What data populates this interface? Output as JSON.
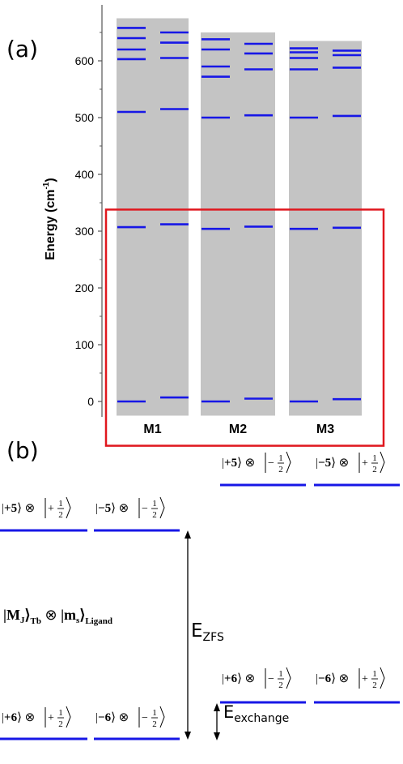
{
  "panel_labels": {
    "a": "(a)",
    "b": "(b)"
  },
  "chart_data": {
    "type": "bar",
    "title": "",
    "xlabel": "",
    "ylabel": "Energy (cm-1)",
    "ylabel_main": "Energy (cm",
    "ylabel_sup": "-1",
    "ylabel_close": ")",
    "ylim": [
      -25,
      695
    ],
    "yticks": [
      0,
      100,
      200,
      300,
      400,
      500,
      600
    ],
    "categories": [
      "M1",
      "M2",
      "M3"
    ],
    "band_top": [
      675,
      650,
      635
    ],
    "band_bottom": -25,
    "levels": [
      {
        "left": [
          0,
          307,
          510,
          603,
          620,
          640,
          658
        ],
        "right": [
          7,
          312,
          515,
          605,
          632,
          650
        ]
      },
      {
        "left": [
          0,
          304,
          500,
          572,
          590,
          620,
          638
        ],
        "right": [
          5,
          308,
          504,
          585,
          613,
          630
        ]
      },
      {
        "left": [
          0,
          304,
          500,
          585,
          605,
          615,
          622
        ],
        "right": [
          4,
          306,
          503,
          588,
          610,
          618
        ]
      }
    ],
    "highlight_box": {
      "ymin": -78,
      "ymax": 338,
      "color": "#e0171e"
    },
    "band_color": "#c4c4c4",
    "level_color": "#1717e6"
  },
  "diagram": {
    "states": [
      {
        "group": "top_right",
        "side": "left",
        "ket": "+5",
        "spin_sign": "−"
      },
      {
        "group": "top_right",
        "side": "right",
        "ket": "−5",
        "spin_sign": "+"
      },
      {
        "group": "upper_left",
        "side": "left",
        "ket": "+5",
        "spin_sign": "+"
      },
      {
        "group": "upper_left",
        "side": "right",
        "ket": "−5",
        "spin_sign": "−"
      },
      {
        "group": "mid_right",
        "side": "left",
        "ket": "+6",
        "spin_sign": "−"
      },
      {
        "group": "mid_right",
        "side": "right",
        "ket": "−6",
        "spin_sign": "+"
      },
      {
        "group": "bottom_left",
        "side": "left",
        "ket": "+6",
        "spin_sign": "+"
      },
      {
        "group": "bottom_left",
        "side": "right",
        "ket": "−6",
        "spin_sign": "−"
      }
    ],
    "otimes": "⊗",
    "half_num": "1",
    "half_den": "2",
    "basis": {
      "mj": "M",
      "j_sub": "J",
      "tb_sub": "Tb",
      "ms": "m",
      "s_sub": "s",
      "ligand_sub": "Ligand"
    },
    "e_zfs": {
      "main": "E",
      "sub": "ZFS"
    },
    "e_exchange": {
      "main": "E",
      "sub": "exchange"
    },
    "line_color": "#1717e6"
  }
}
